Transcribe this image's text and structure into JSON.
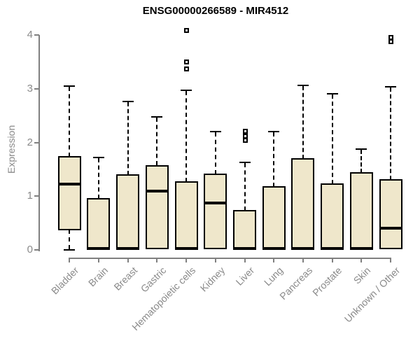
{
  "title": "ENSG00000266589 - MIR4512",
  "chart_data": {
    "type": "boxplot",
    "title": "ENSG00000266589 - MIR4512",
    "xlabel": "",
    "ylabel": "Expression",
    "ylim": [
      0,
      4
    ],
    "yticks": [
      0,
      1,
      2,
      3,
      4
    ],
    "grid": false,
    "legend": false,
    "categories": [
      "Bladder",
      "Brain",
      "Breast",
      "Gastric",
      "Hematopoietic cells",
      "Kidney",
      "Liver",
      "Lung",
      "Pancreas",
      "Prostate",
      "Skin",
      "Unknown / Other"
    ],
    "boxes": [
      {
        "category": "Bladder",
        "low": 0.0,
        "q1": 0.38,
        "median": 1.23,
        "q3": 1.73,
        "high": 3.05,
        "outliers": []
      },
      {
        "category": "Brain",
        "low": 0.01,
        "q1": 0.01,
        "median": 0.03,
        "q3": 0.95,
        "high": 1.72,
        "outliers": []
      },
      {
        "category": "Breast",
        "low": 0.01,
        "q1": 0.01,
        "median": 0.03,
        "q3": 1.4,
        "high": 2.76,
        "outliers": []
      },
      {
        "category": "Gastric",
        "low": 0.02,
        "q1": 0.02,
        "median": 1.1,
        "q3": 1.57,
        "high": 2.47,
        "outliers": []
      },
      {
        "category": "Hematopoietic cells",
        "low": 0.01,
        "q1": 0.01,
        "median": 0.03,
        "q3": 1.27,
        "high": 2.97,
        "outliers": [
          3.37,
          3.5,
          4.09
        ]
      },
      {
        "category": "Kidney",
        "low": 0.02,
        "q1": 0.02,
        "median": 0.87,
        "q3": 1.41,
        "high": 2.2,
        "outliers": []
      },
      {
        "category": "Liver",
        "low": 0.01,
        "q1": 0.01,
        "median": 0.03,
        "q3": 0.73,
        "high": 1.63,
        "outliers": [
          2.04,
          2.13,
          2.21
        ]
      },
      {
        "category": "Lung",
        "low": 0.01,
        "q1": 0.01,
        "median": 0.03,
        "q3": 1.17,
        "high": 2.2,
        "outliers": []
      },
      {
        "category": "Pancreas",
        "low": 0.01,
        "q1": 0.01,
        "median": 0.03,
        "q3": 1.7,
        "high": 3.06,
        "outliers": []
      },
      {
        "category": "Prostate",
        "low": 0.01,
        "q1": 0.01,
        "median": 0.03,
        "q3": 1.23,
        "high": 2.9,
        "outliers": []
      },
      {
        "category": "Skin",
        "low": 0.01,
        "q1": 0.01,
        "median": 0.03,
        "q3": 1.43,
        "high": 1.87,
        "outliers": []
      },
      {
        "category": "Unknown / Other",
        "low": 0.02,
        "q1": 0.02,
        "median": 0.4,
        "q3": 1.3,
        "high": 3.03,
        "outliers": [
          3.88,
          3.96
        ]
      }
    ],
    "colors": {
      "box_fill": "#EFE7CB",
      "box_border": "#000000",
      "median": "#000000",
      "whisker": "#000000",
      "axis": "#808080",
      "tick_text": "#8a8a8a",
      "title_text": "#000000"
    }
  }
}
